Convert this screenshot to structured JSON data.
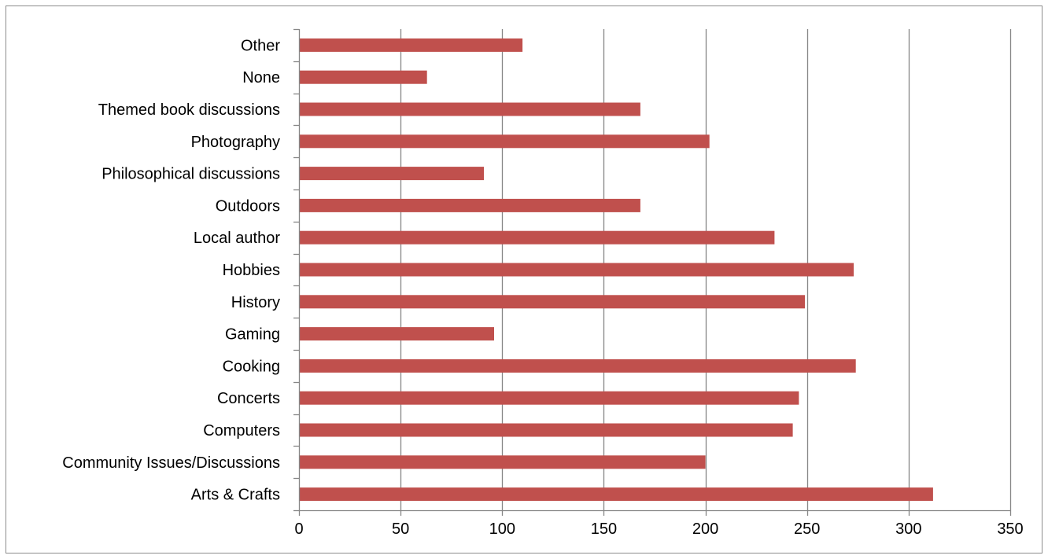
{
  "chart_data": {
    "type": "bar",
    "orientation": "horizontal",
    "title": "",
    "xlabel": "",
    "ylabel": "",
    "categories": [
      "Arts & Crafts",
      "Community Issues/Discussions",
      "Computers",
      "Concerts",
      "Cooking",
      "Gaming",
      "History",
      "Hobbies",
      "Local author",
      "Outdoors",
      "Philosophical discussions",
      "Photography",
      "Themed book discussions",
      "None",
      "Other"
    ],
    "values": [
      312,
      200,
      243,
      246,
      274,
      96,
      249,
      273,
      234,
      168,
      91,
      202,
      168,
      63,
      110
    ],
    "xlim": [
      0,
      350
    ],
    "x_ticks": [
      "0",
      "50",
      "100",
      "150",
      "200",
      "250",
      "300",
      "350"
    ],
    "grid": "vertical major gridlines",
    "legend": "none",
    "colors": {
      "bar": "#c0504d",
      "gridline": "#868686",
      "axis": "#868686"
    }
  }
}
